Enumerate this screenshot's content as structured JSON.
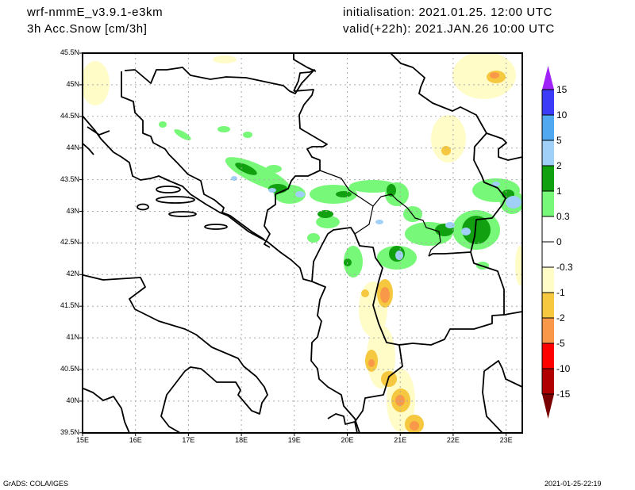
{
  "header": {
    "model": "wrf-nmmE_v3.9.1-e3km",
    "variable": "3h Acc.Snow [cm/3h]",
    "init": "initialisation: 2021.01.25.  12:00 UTC",
    "valid": "valid(+22h): 2021.JAN.26 10:00 UTC"
  },
  "axes": {
    "lon_labels": [
      "15E",
      "16E",
      "17E",
      "18E",
      "19E",
      "20E",
      "21E",
      "22E",
      "23E"
    ],
    "lat_labels": [
      "45.5N",
      "45N",
      "44.5N",
      "44N",
      "43.5N",
      "43N",
      "42.5N",
      "42N",
      "41.5N",
      "41N",
      "40.5N",
      "40N",
      "39.5N"
    ]
  },
  "colorbar": {
    "labels": [
      "15",
      "10",
      "5",
      "2",
      "1",
      "0.3",
      "0",
      "-0.3",
      "-1",
      "-2",
      "-5",
      "-10",
      "-15"
    ],
    "colors": [
      "#3c3cf8",
      "#50a8f0",
      "#a0d0f8",
      "#10a010",
      "#78f878",
      "#ffffff",
      "#ffffff",
      "#fffcc8",
      "#f5c840",
      "#f89848",
      "#ff0000",
      "#b00000"
    ],
    "top_arrow_color": "#a020f8",
    "bottom_arrow_color": "#780000"
  },
  "footer": {
    "credit": "GrADS: COLA/IGES",
    "timestamp": "2021-01-25-22:19"
  }
}
